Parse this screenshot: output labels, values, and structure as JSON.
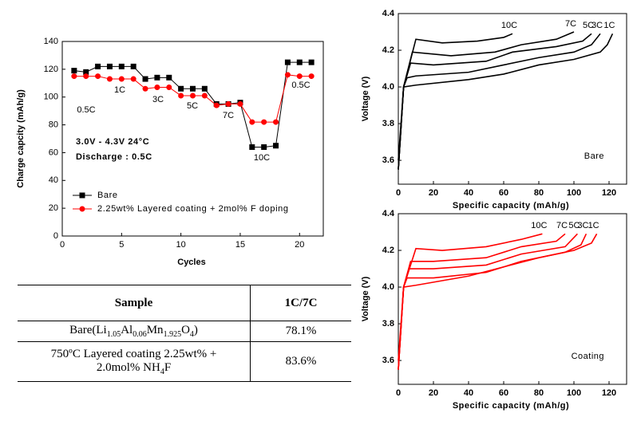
{
  "chart_data": [
    {
      "type": "line",
      "ylabel": "Charge capcity (mAh/g)",
      "xlabel": "Cycles",
      "x": [
        1,
        2,
        3,
        4,
        5,
        6,
        7,
        8,
        9,
        10,
        11,
        12,
        13,
        14,
        15,
        16,
        17,
        18,
        19,
        20,
        21
      ],
      "series": [
        {
          "name": "Bare",
          "color": "#000000",
          "marker": "square",
          "values": [
            119,
            118,
            122,
            122,
            122,
            122,
            113,
            114,
            114,
            106,
            106,
            106,
            95,
            95,
            96,
            64,
            64,
            65,
            125,
            125,
            125
          ]
        },
        {
          "name": "2.25wt% Layered coating + 2mol% F doping",
          "color": "#ff0000",
          "marker": "circle",
          "values": [
            115,
            115,
            115,
            113,
            113,
            113,
            106,
            107,
            107,
            101,
            101,
            101,
            94,
            95,
            95,
            82,
            82,
            82,
            116,
            115,
            115
          ]
        }
      ],
      "annotations": [
        "0.5C",
        "1C",
        "3C",
        "5C",
        "7C",
        "10C",
        "0.5C",
        "3.0V - 4.3V 24°C",
        "Discharge : 0.5C"
      ],
      "xlim": [
        0,
        22
      ],
      "xticks": [
        0,
        5,
        10,
        15,
        20
      ],
      "ylim": [
        0,
        140
      ],
      "yticks": [
        0,
        20,
        40,
        60,
        80,
        100,
        120,
        140
      ],
      "legend": "lower left"
    },
    {
      "type": "line",
      "title": "Bare",
      "xlabel": "Specific capacity (mAh/g)",
      "ylabel": "Voltage (V)",
      "xlim": [
        0,
        130
      ],
      "xticks": [
        0,
        20,
        40,
        60,
        80,
        100,
        120
      ],
      "ylim": [
        3.47,
        4.4
      ],
      "yticks": [
        3.6,
        3.8,
        {
          "value": 4,
          "label": "4.0"
        },
        4.2,
        4.4
      ],
      "series": [
        {
          "name": "10C",
          "color": "#000000",
          "x": [
            0,
            3,
            10,
            25,
            45,
            60,
            65
          ],
          "values": [
            3.55,
            4.0,
            4.26,
            4.24,
            4.25,
            4.27,
            4.29
          ]
        },
        {
          "name": "7C",
          "color": "#000000",
          "x": [
            0,
            3,
            8,
            30,
            55,
            70,
            90,
            100
          ],
          "values": [
            3.55,
            4.0,
            4.19,
            4.17,
            4.19,
            4.23,
            4.26,
            4.3
          ]
        },
        {
          "name": "5C",
          "color": "#000000",
          "x": [
            0,
            3,
            7,
            20,
            50,
            65,
            90,
            105,
            110
          ],
          "values": [
            3.55,
            4.0,
            4.13,
            4.12,
            4.14,
            4.19,
            4.22,
            4.25,
            4.29
          ]
        },
        {
          "name": "3C",
          "color": "#000000",
          "x": [
            0,
            3,
            5,
            10,
            40,
            60,
            80,
            100,
            110,
            115
          ],
          "values": [
            3.55,
            4.0,
            4.05,
            4.06,
            4.08,
            4.12,
            4.16,
            4.19,
            4.23,
            4.29
          ]
        },
        {
          "name": "1C",
          "color": "#000000",
          "x": [
            0,
            3,
            10,
            40,
            60,
            80,
            100,
            115,
            119,
            122
          ],
          "values": [
            3.6,
            4.0,
            4.01,
            4.04,
            4.07,
            4.12,
            4.15,
            4.19,
            4.23,
            4.29
          ]
        }
      ]
    },
    {
      "type": "line",
      "title": "Coating",
      "xlabel": "Specific capacity (mAh/g)",
      "ylabel": "Voltage (V)",
      "xlim": [
        0,
        130
      ],
      "xticks": [
        0,
        20,
        40,
        60,
        80,
        100,
        120
      ],
      "ylim": [
        3.47,
        4.4
      ],
      "yticks": [
        3.6,
        3.8,
        {
          "value": 4,
          "label": "4.0"
        },
        4.2,
        4.4
      ],
      "series": [
        {
          "name": "10C",
          "color": "#ff0000",
          "x": [
            0,
            3,
            10,
            25,
            50,
            70,
            82
          ],
          "values": [
            3.55,
            4.0,
            4.21,
            4.2,
            4.22,
            4.26,
            4.29
          ]
        },
        {
          "name": "7C",
          "color": "#ff0000",
          "x": [
            0,
            3,
            7,
            20,
            50,
            70,
            90,
            95
          ],
          "values": [
            3.55,
            4.0,
            4.14,
            4.14,
            4.16,
            4.22,
            4.25,
            4.29
          ]
        },
        {
          "name": "5C",
          "color": "#ff0000",
          "x": [
            0,
            3,
            6,
            20,
            50,
            70,
            95,
            102
          ],
          "values": [
            3.55,
            4.0,
            4.1,
            4.1,
            4.12,
            4.18,
            4.22,
            4.29
          ]
        },
        {
          "name": "3C",
          "color": "#ff0000",
          "x": [
            0,
            3,
            5,
            20,
            50,
            70,
            95,
            104,
            107
          ],
          "values": [
            3.55,
            4.0,
            4.05,
            4.05,
            4.08,
            4.14,
            4.19,
            4.23,
            4.29
          ]
        },
        {
          "name": "1C",
          "color": "#ff0000",
          "x": [
            0,
            3,
            10,
            40,
            60,
            80,
            100,
            110,
            113
          ],
          "values": [
            3.6,
            4.0,
            4.01,
            4.06,
            4.11,
            4.16,
            4.2,
            4.24,
            4.29
          ]
        }
      ]
    }
  ],
  "table": {
    "header": [
      "Sample",
      "1C/7C"
    ],
    "rows": [
      [
        [
          "Bare(Li",
          "1.05",
          "Al",
          "0.06",
          "Mn",
          "1.925",
          "O",
          "4",
          ")"
        ],
        "78.1%"
      ],
      [
        [
          "750ºC Layered coating  2.25wt% +",
          "2.0mol% NH",
          "4",
          "F"
        ],
        "83.6%"
      ]
    ]
  }
}
